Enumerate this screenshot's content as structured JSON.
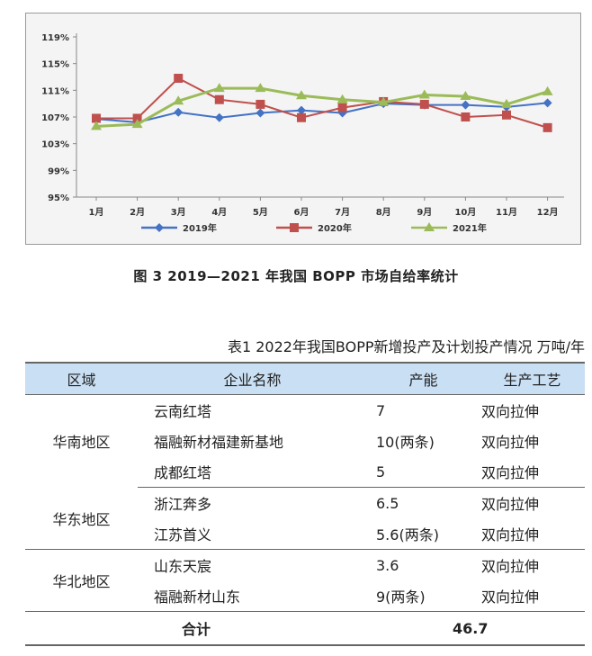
{
  "chart_data": {
    "type": "line",
    "categories": [
      "1月",
      "2月",
      "3月",
      "4月",
      "5月",
      "6月",
      "7月",
      "8月",
      "9月",
      "10月",
      "11月",
      "12月"
    ],
    "yticks": [
      "95%",
      "99%",
      "103%",
      "107%",
      "111%",
      "115%",
      "119%"
    ],
    "ylim": [
      95,
      119
    ],
    "grid": false,
    "legend_position": "bottom",
    "series": [
      {
        "name": "2019年",
        "color": "#4472c4",
        "marker": "diamond",
        "values": [
          106.7,
          106.2,
          107.7,
          106.9,
          107.6,
          108.0,
          107.6,
          109.0,
          108.8,
          108.8,
          108.5,
          109.1
        ]
      },
      {
        "name": "2020年",
        "color": "#c0504d",
        "marker": "square",
        "values": [
          106.8,
          106.8,
          112.8,
          109.6,
          108.9,
          106.9,
          108.4,
          109.3,
          108.9,
          107.0,
          107.3,
          105.4
        ]
      },
      {
        "name": "2021年",
        "color": "#9bbb59",
        "marker": "triangle",
        "values": [
          105.6,
          105.9,
          109.4,
          111.3,
          111.3,
          110.2,
          109.6,
          109.2,
          110.3,
          110.1,
          108.9,
          110.8
        ]
      }
    ]
  },
  "figure_caption": "图 3   2019—2021 年我国 BOPP 市场自给率统计",
  "table": {
    "caption": "表1   2022年我国BOPP新增投产及计划投产情况    万吨/年",
    "headers": [
      "区域",
      "企业名称",
      "产能",
      "生产工艺"
    ],
    "regions": [
      "华南地区",
      "华东地区",
      "华北地区"
    ],
    "rows": [
      {
        "company": "云南红塔",
        "capacity": "7",
        "process": "双向拉伸"
      },
      {
        "company": "福融新材福建新基地",
        "capacity": "10(两条)",
        "process": "双向拉伸"
      },
      {
        "company": "成都红塔",
        "capacity": "5",
        "process": "双向拉伸"
      },
      {
        "company": "浙江奔多",
        "capacity": "6.5",
        "process": "双向拉伸"
      },
      {
        "company": "江苏首义",
        "capacity": "5.6(两条)",
        "process": "双向拉伸"
      },
      {
        "company": "山东天宸",
        "capacity": "3.6",
        "process": "双向拉伸"
      },
      {
        "company": "福融新材山东",
        "capacity": "9(两条)",
        "process": "双向拉伸"
      }
    ],
    "total_label": "合计",
    "total_value": "46.7"
  }
}
